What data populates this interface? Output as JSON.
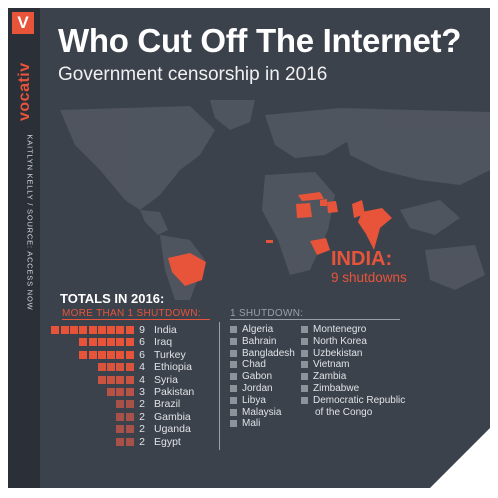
{
  "colors": {
    "background": "#3c424c",
    "strip": "#2a2f38",
    "accent": "#e8543a",
    "land": "#6b717b",
    "land_dark": "#5a6069",
    "single_marker": "#8e939b"
  },
  "brand": {
    "logo_letter": "V",
    "name": "vocativ",
    "credit_author": "KAITLYN KELLY",
    "credit_sep": "/",
    "credit_source": "SOURCE: ACCESS NOW"
  },
  "header": {
    "title": "Who Cut Off The Internet?",
    "subtitle": "Government censorship in 2016"
  },
  "map": {
    "highlighted_countries": [
      "Brazil",
      "Egypt",
      "Ethiopia",
      "Iraq",
      "Syria",
      "Turkey",
      "Gambia",
      "Pakistan",
      "India"
    ],
    "callout": {
      "country": "INDIA:",
      "count_text": "9 shutdowns"
    }
  },
  "legend": {
    "totals_title": "TOTALS IN 2016:",
    "multi_heading": "MORE THAN 1 SHUTDOWN:",
    "single_heading": "1 SHUTDOWN:"
  },
  "chart_data": {
    "type": "table",
    "title": "Who Cut Off The Internet?",
    "subtitle": "Government censorship in 2016",
    "multi": [
      {
        "country": "India",
        "shutdowns": 9
      },
      {
        "country": "Iraq",
        "shutdowns": 6
      },
      {
        "country": "Turkey",
        "shutdowns": 6
      },
      {
        "country": "Ethiopia",
        "shutdowns": 4
      },
      {
        "country": "Syria",
        "shutdowns": 4
      },
      {
        "country": "Pakistan",
        "shutdowns": 3
      },
      {
        "country": "Brazil",
        "shutdowns": 2
      },
      {
        "country": "Gambia",
        "shutdowns": 2
      },
      {
        "country": "Uganda",
        "shutdowns": 2
      },
      {
        "country": "Egypt",
        "shutdowns": 2
      }
    ],
    "single_col1": [
      "Algeria",
      "Bahrain",
      "Bangladesh",
      "Chad",
      "Gabon",
      "Jordan",
      "Libya",
      "Malaysia",
      "Mali"
    ],
    "single_col2": [
      "Montenegro",
      "North Korea",
      "Uzbekistan",
      "Vietnam",
      "Zambia",
      "Zimbabwe",
      "Democratic Republic",
      "of the Congo"
    ]
  }
}
